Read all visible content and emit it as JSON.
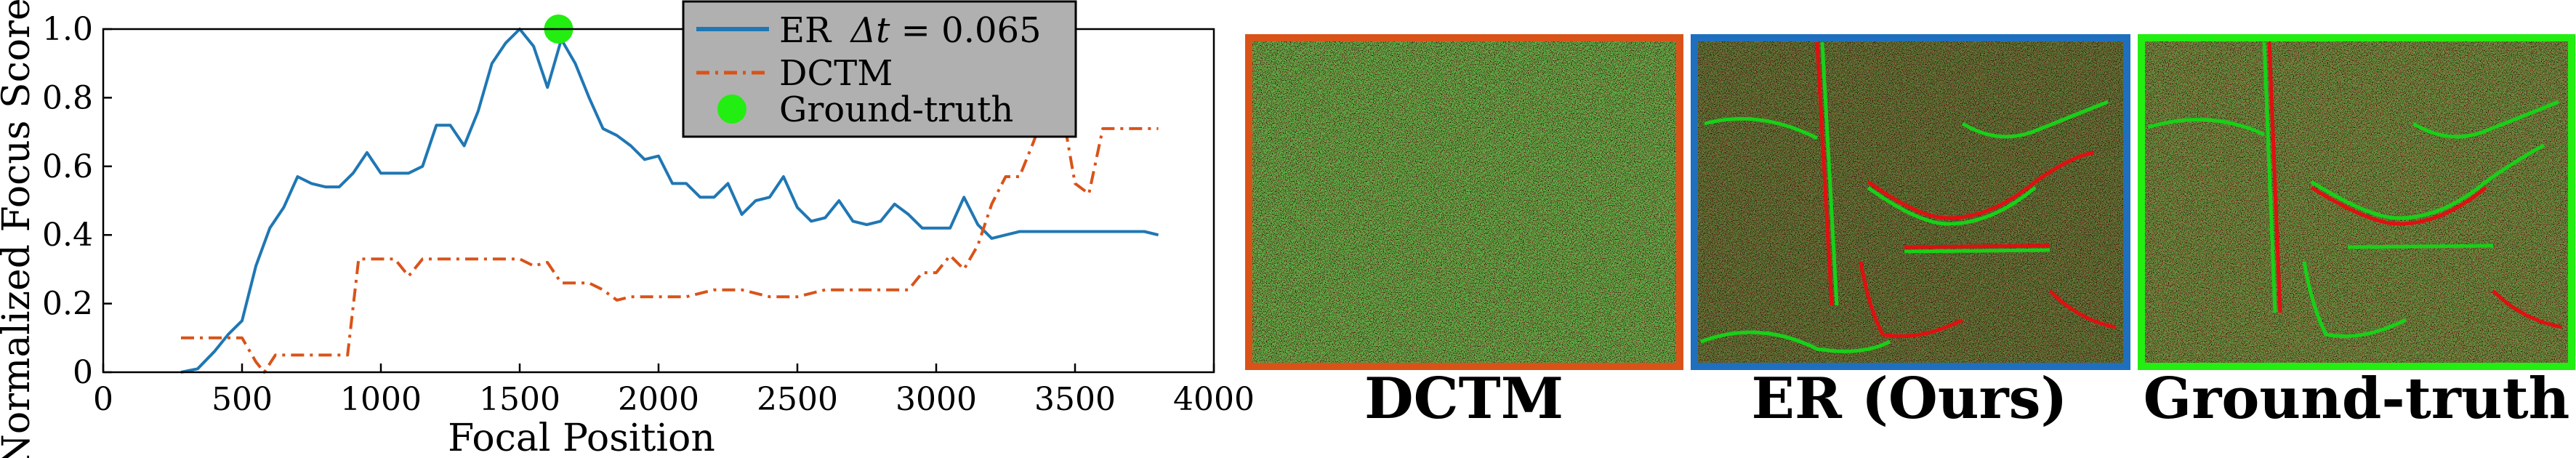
{
  "chart_data": {
    "type": "line",
    "xlabel": "Focal Position",
    "ylabel": "Normalized Focus Score",
    "xlim": [
      0,
      4000
    ],
    "ylim": [
      0,
      1.0
    ],
    "xticks": [
      "0",
      "500",
      "1000",
      "1500",
      "2000",
      "2500",
      "3000",
      "3500",
      "4000"
    ],
    "yticks": [
      "0",
      "0.2",
      "0.4",
      "0.6",
      "0.8",
      "1.0"
    ],
    "grid": false,
    "legend_position": "top-right",
    "legend": {
      "er_prefix": "ER",
      "er_math": "Δt",
      "er_value": " = 0.065",
      "dctm": "DCTM",
      "ground_truth": "Ground-truth"
    },
    "series": [
      {
        "name": "ER Δt = 0.065",
        "color": "#1f77b4",
        "style": "solid",
        "x": [
          280,
          340,
          400,
          450,
          500,
          550,
          600,
          650,
          700,
          750,
          800,
          850,
          900,
          950,
          1000,
          1050,
          1100,
          1150,
          1200,
          1250,
          1300,
          1350,
          1400,
          1450,
          1500,
          1550,
          1600,
          1650,
          1700,
          1750,
          1800,
          1850,
          1900,
          1950,
          2000,
          2050,
          2100,
          2150,
          2200,
          2250,
          2300,
          2350,
          2400,
          2450,
          2500,
          2550,
          2600,
          2650,
          2700,
          2750,
          2800,
          2850,
          2900,
          2950,
          3000,
          3050,
          3100,
          3150,
          3200,
          3250,
          3300,
          3350,
          3400,
          3450,
          3500,
          3550,
          3600,
          3650,
          3700,
          3750,
          3800
        ],
        "y": [
          0.0,
          0.01,
          0.06,
          0.11,
          0.15,
          0.31,
          0.42,
          0.48,
          0.57,
          0.55,
          0.54,
          0.54,
          0.58,
          0.64,
          0.58,
          0.58,
          0.58,
          0.6,
          0.72,
          0.72,
          0.66,
          0.76,
          0.9,
          0.96,
          1.0,
          0.95,
          0.83,
          0.97,
          0.9,
          0.8,
          0.71,
          0.69,
          0.66,
          0.62,
          0.63,
          0.55,
          0.55,
          0.51,
          0.51,
          0.55,
          0.46,
          0.5,
          0.51,
          0.57,
          0.48,
          0.44,
          0.45,
          0.5,
          0.44,
          0.43,
          0.44,
          0.49,
          0.46,
          0.42,
          0.42,
          0.42,
          0.51,
          0.43,
          0.39,
          0.4,
          0.41,
          0.41,
          0.41,
          0.41,
          0.41,
          0.41,
          0.41,
          0.41,
          0.41,
          0.41,
          0.4
        ]
      },
      {
        "name": "DCTM",
        "color": "#d95319",
        "style": "dash-dot",
        "x": [
          280,
          400,
          500,
          550,
          580,
          620,
          700,
          800,
          880,
          920,
          950,
          1000,
          1050,
          1100,
          1150,
          1200,
          1300,
          1400,
          1500,
          1550,
          1600,
          1650,
          1750,
          1800,
          1850,
          1900,
          1950,
          2000,
          2100,
          2200,
          2300,
          2400,
          2500,
          2600,
          2700,
          2800,
          2900,
          2950,
          3000,
          3050,
          3100,
          3150,
          3200,
          3250,
          3300,
          3350,
          3400,
          3450,
          3500,
          3550,
          3600,
          3650,
          3700,
          3750,
          3800
        ],
        "y": [
          0.1,
          0.1,
          0.1,
          0.03,
          0.0,
          0.05,
          0.05,
          0.05,
          0.05,
          0.33,
          0.33,
          0.33,
          0.33,
          0.28,
          0.33,
          0.33,
          0.33,
          0.33,
          0.33,
          0.31,
          0.32,
          0.26,
          0.26,
          0.24,
          0.21,
          0.22,
          0.22,
          0.22,
          0.22,
          0.24,
          0.24,
          0.22,
          0.22,
          0.24,
          0.24,
          0.24,
          0.24,
          0.29,
          0.29,
          0.34,
          0.3,
          0.37,
          0.49,
          0.57,
          0.57,
          0.67,
          0.78,
          0.78,
          0.55,
          0.52,
          0.71,
          0.71,
          0.71,
          0.71,
          0.71
        ]
      }
    ],
    "ground_truth_point": {
      "x": 1640,
      "y": 1.0,
      "color": "#22ee11"
    }
  },
  "panels": [
    {
      "caption": "DCTM",
      "border_color": "#d95319"
    },
    {
      "caption": "ER (Ours)",
      "border_color": "#1f6fbf"
    },
    {
      "caption": "Ground-truth",
      "border_color": "#22ee11"
    }
  ]
}
